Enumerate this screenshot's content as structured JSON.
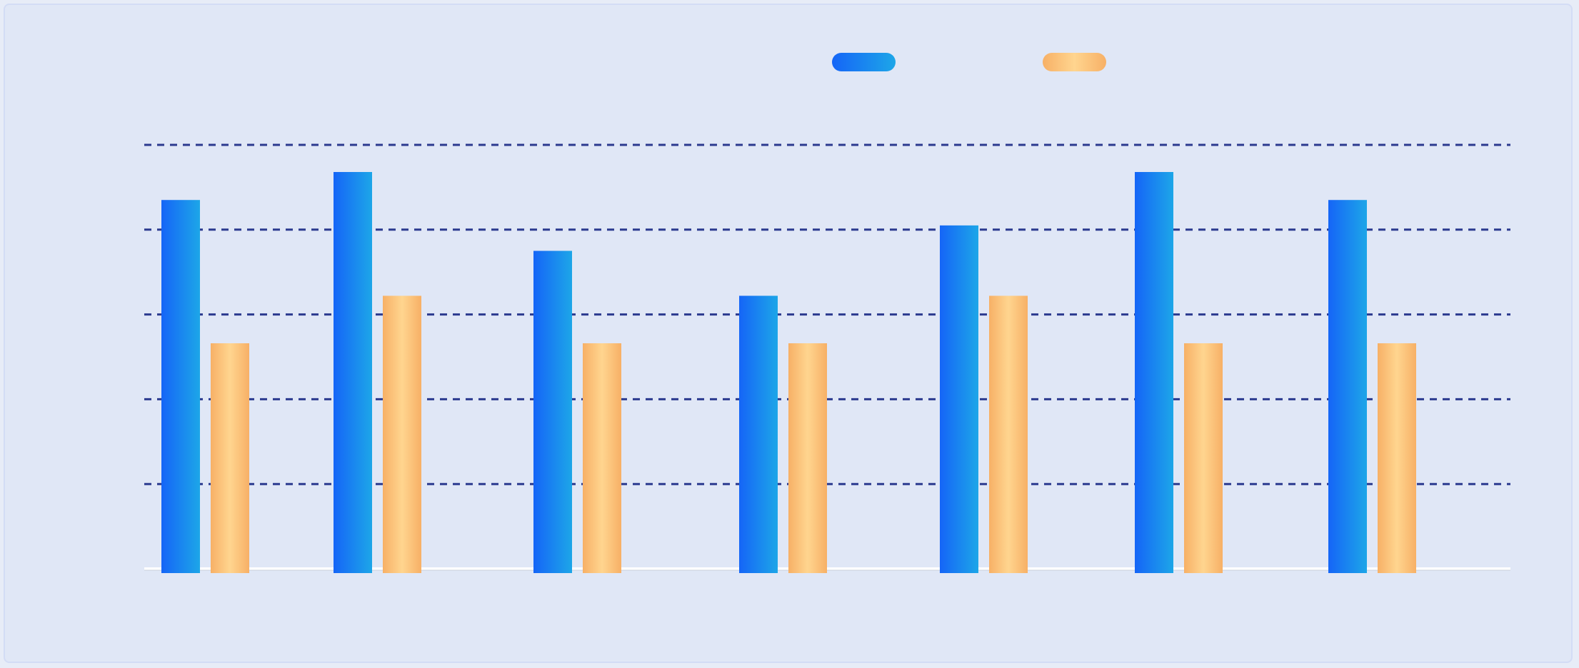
{
  "chart_data": {
    "type": "bar",
    "title": "",
    "xlabel": "",
    "ylabel": "",
    "categories": [
      "",
      "",
      "",
      "",
      "",
      "",
      ""
    ],
    "ylim": [
      0,
      5
    ],
    "grid": true,
    "legend": "top-center",
    "series": [
      {
        "name": "",
        "color_start": "#1565f7",
        "color_end": "#1da6e8",
        "values": [
          4.35,
          4.68,
          3.75,
          3.22,
          4.05,
          4.68,
          4.35
        ]
      },
      {
        "name": "",
        "color_start": "#f7b066",
        "color_end": "#ffd58f",
        "values": [
          2.66,
          3.22,
          2.66,
          2.66,
          3.22,
          2.66,
          2.66
        ]
      }
    ]
  }
}
